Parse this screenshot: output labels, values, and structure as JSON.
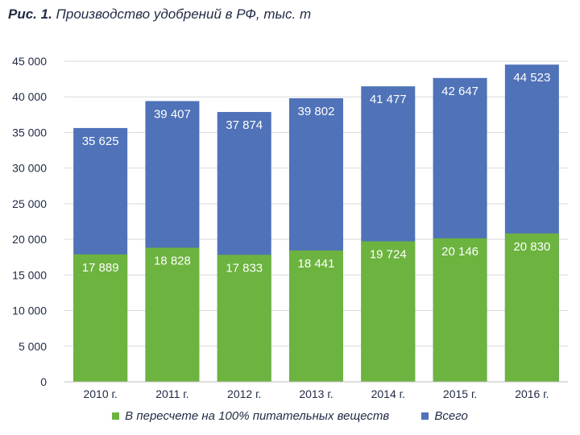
{
  "header": {
    "fig_label": "Рис. 1.",
    "title_text": "Производство удобрений в РФ, тыс. т"
  },
  "colors": {
    "total": "#4f72b8",
    "nutrient": "#6cb33f",
    "grid": "#d9d9d9",
    "axis_text": "#1f2a44"
  },
  "chart_data": {
    "type": "bar",
    "mode": "overlay",
    "categories": [
      "2010 г.",
      "2011 г.",
      "2012 г.",
      "2013 г.",
      "2014 г.",
      "2015 г.",
      "2016 г."
    ],
    "series": [
      {
        "name": "Всего",
        "values": [
          35625,
          39407,
          37874,
          39802,
          41477,
          42647,
          44523
        ],
        "labels": [
          "35 625",
          "39 407",
          "37 874",
          "39 802",
          "41 477",
          "42 647",
          "44 523"
        ]
      },
      {
        "name": "В пересчете на 100% питательных веществ",
        "values": [
          17889,
          18828,
          17833,
          18441,
          19724,
          20146,
          20830
        ],
        "labels": [
          "17 889",
          "18 828",
          "17 833",
          "18 441",
          "19 724",
          "20 146",
          "20 830"
        ]
      }
    ],
    "ylim": [
      0,
      45000
    ],
    "yticks": [
      0,
      5000,
      10000,
      15000,
      20000,
      25000,
      30000,
      35000,
      40000,
      45000
    ],
    "ytick_labels": [
      "0",
      "5 000",
      "10 000",
      "15 000",
      "20 000",
      "25 000",
      "30 000",
      "35 000",
      "40 000",
      "45 000"
    ],
    "grid": true,
    "legend_position": "bottom"
  },
  "legend": {
    "nutrient_label": "В пересчете на 100% питательных веществ",
    "total_label": "Всего"
  }
}
